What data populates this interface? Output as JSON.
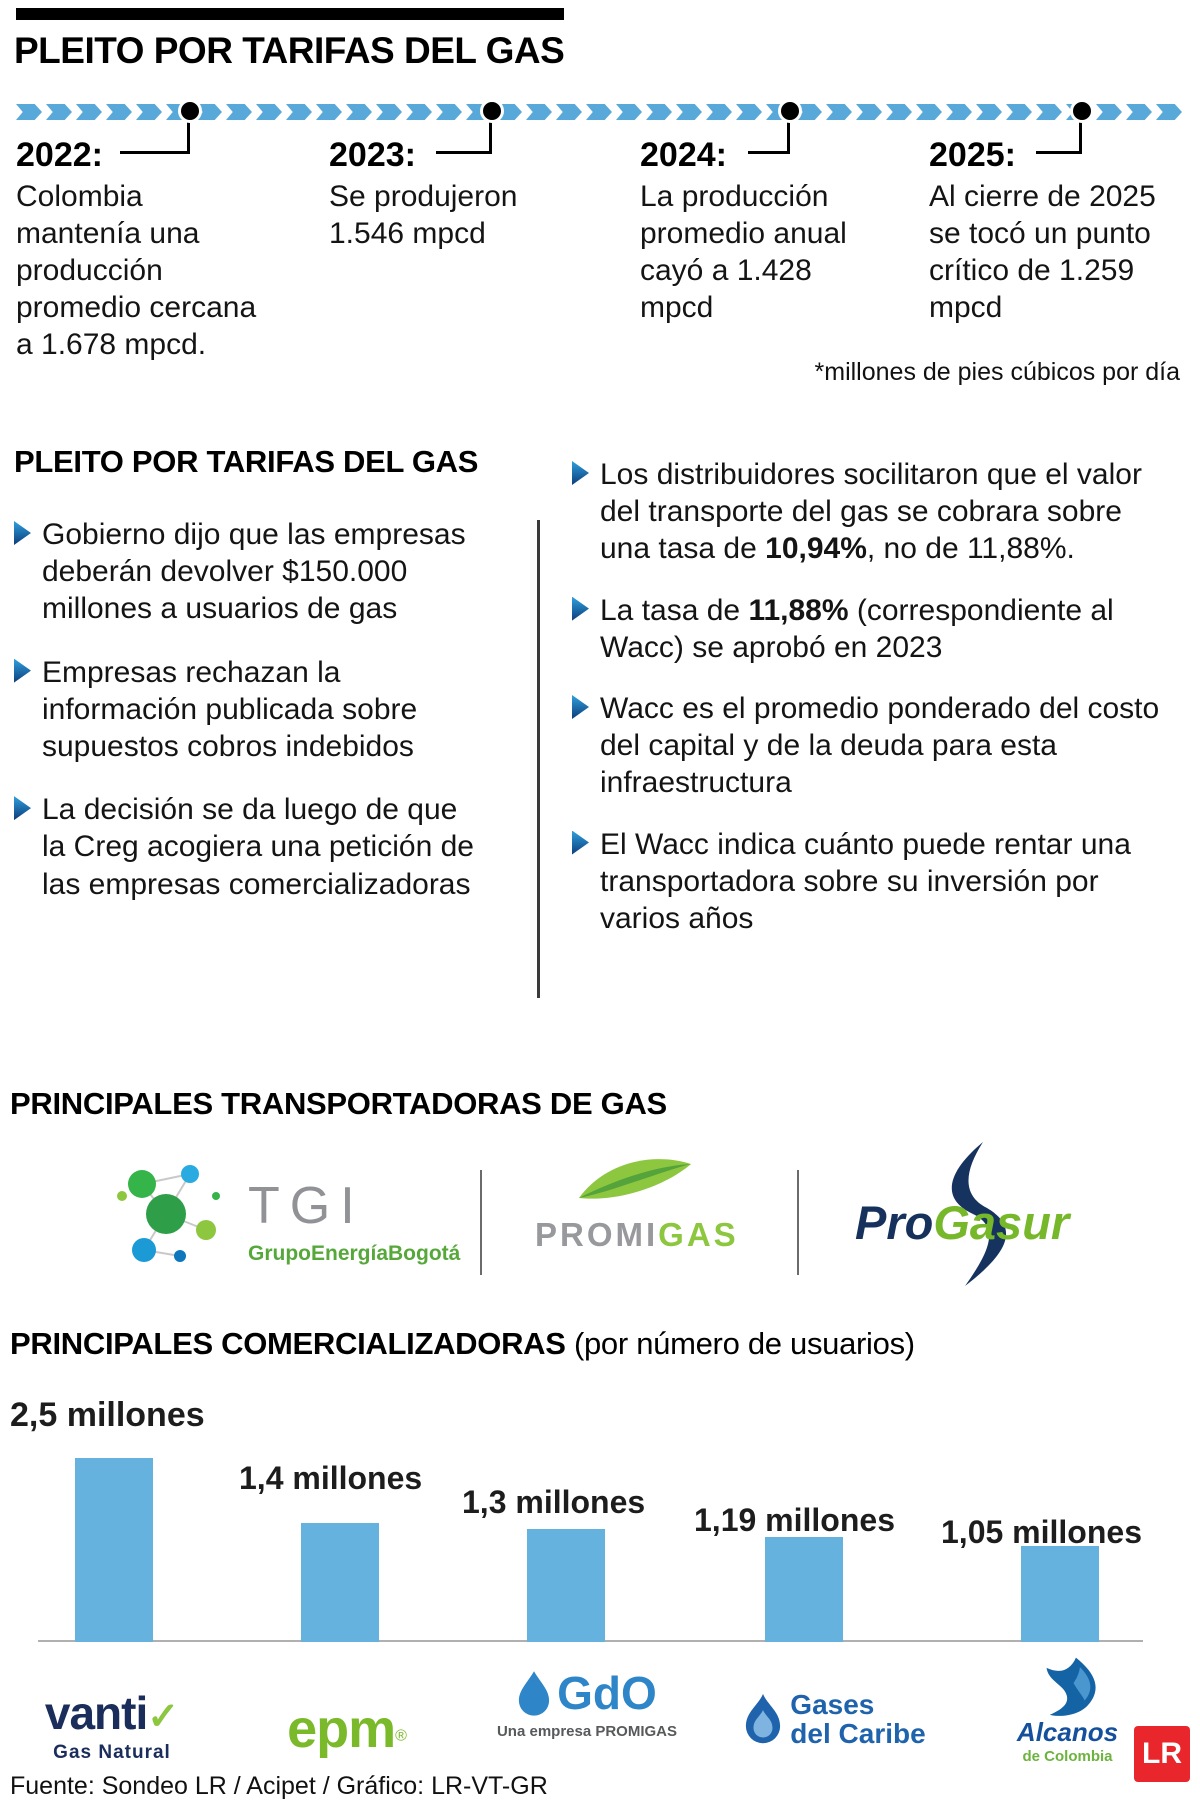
{
  "colors": {
    "timeline_blue": "#58a9d9",
    "bar_blue": "#66b2de",
    "bullet_blue_top": "#2fa0dc",
    "bullet_blue_bottom": "#0d3c7c",
    "lr_red": "#e8262c"
  },
  "header": {
    "title": "PLEITO POR TARIFAS DEL GAS"
  },
  "timeline": {
    "items": [
      {
        "year": "2022:",
        "text": "Colombia mantenía una producción promedio cercana a 1.678 mpcd."
      },
      {
        "year": "2023:",
        "text": "Se produjeron 1.546 mpcd"
      },
      {
        "year": "2024:",
        "text": "La producción promedio anual cayó a 1.428 mpcd"
      },
      {
        "year": "2025:",
        "text": "Al cierre de 2025 se tocó un punto crítico de 1.259 mpcd"
      }
    ],
    "footnote": "*millones de pies cúbicos por día"
  },
  "dispute": {
    "title": "PLEITO POR TARIFAS DEL GAS",
    "left_bullets": [
      "Gobierno dijo que las empresas deberán devolver $150.000 millones a usuarios de gas",
      "Empresas rechazan la información publicada sobre supuestos cobros indebidos",
      "La decisión se da luego de que la Creg acogiera una petición de las empresas comercializadoras"
    ],
    "right_bullets": [
      {
        "pre": "Los distribuidores socilitaron que el valor del transporte del gas se cobrara sobre una tasa de ",
        "bold": "10,94%",
        "post": ", no de 11,88%."
      },
      {
        "pre": "La tasa de ",
        "bold": "11,88%",
        "post": " (correspondiente al Wacc) se aprobó en 2023"
      },
      {
        "pre": "Wacc es el promedio ponderado del costo del capital y de la deuda para esta infraestructura",
        "bold": "",
        "post": ""
      },
      {
        "pre": "El Wacc indica cuánto puede rentar una transportadora sobre su inversión por varios años",
        "bold": "",
        "post": ""
      }
    ]
  },
  "transporters": {
    "title": "PRINCIPALES TRANSPORTADORAS DE GAS",
    "tgi": {
      "name": "TGI",
      "subtitle": "GrupoEnergíaBogotá"
    },
    "promigas": {
      "name_gray": "PROMI",
      "name_green": "GAS"
    },
    "progasur": {
      "name_navy": "Pro",
      "name_green": "Gasur"
    }
  },
  "comercializadoras": {
    "title_bold": "PRINCIPALES COMERCIALIZADORAS",
    "title_normal": " (por número de usuarios)"
  },
  "chart_data": {
    "type": "bar",
    "title": "PRINCIPALES COMERCIALIZADORAS (por número de usuarios)",
    "categories": [
      "Vanti Gas Natural",
      "epm",
      "GdO (una empresa Promigas)",
      "Gases del Caribe",
      "Alcanos de Colombia"
    ],
    "values": [
      2.5,
      1.4,
      1.3,
      1.19,
      1.05
    ],
    "labels": [
      "2,5 millones",
      "1,4 millones",
      "1,3 millones",
      "1,19 millones",
      "1,05 millones"
    ],
    "unit": "millones de usuarios",
    "bar_color": "#66b2de",
    "grid": false,
    "legend": false
  },
  "brands": {
    "vanti": {
      "name": "vanti",
      "check": "✓",
      "subtitle": "Gas Natural"
    },
    "epm": {
      "name": "epm",
      "reg": "®"
    },
    "gdo": {
      "name": "GdO",
      "subtitle": "Una empresa PROMIGAS"
    },
    "gases_caribe": {
      "line1": "Gases",
      "line2": "del Caribe"
    },
    "alcanos": {
      "name": "Alcanos",
      "subtitle": "de Colombia"
    }
  },
  "footer": {
    "source": "Fuente: Sondeo LR / Acipet / Gráfico: LR-VT-GR",
    "lr": "LR"
  }
}
